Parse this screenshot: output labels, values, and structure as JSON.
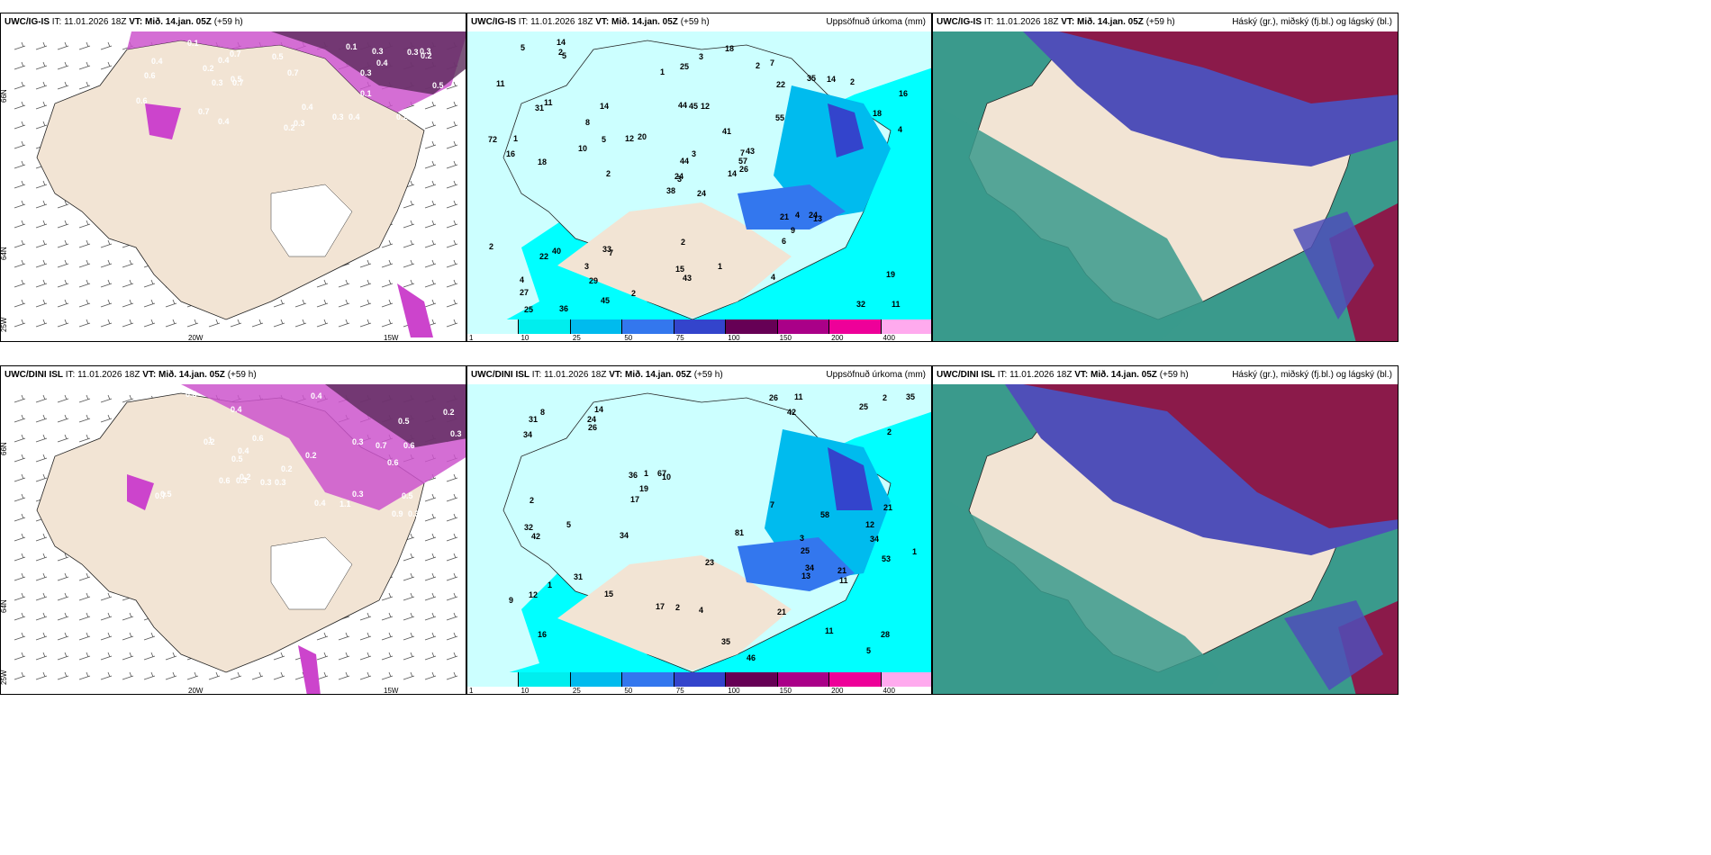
{
  "panels": {
    "p1": {
      "model": "UWC/IG-IS",
      "it": "IT: 11.01.2026 18Z",
      "vt": "VT: Mið. 14.jan. 05Z",
      "lead": "(+59 h)",
      "right_title": ""
    },
    "p2": {
      "model": "UWC/IG-IS",
      "it": "IT: 11.01.2026 18Z",
      "vt": "VT: Mið. 14.jan. 05Z",
      "lead": "(+59 h)",
      "right_title": "Uppsöfnuð úrkoma (mm)"
    },
    "p3": {
      "model": "UWC/IG-IS",
      "it": "IT: 11.01.2026 18Z",
      "vt": "VT: Mið. 14.jan. 05Z",
      "lead": "(+59 h)",
      "right_title": "Háský (gr.), miðský (fj.bl.) og lágský (bl.)"
    },
    "p4": {
      "model": "UWC/DINI ISL",
      "it": "IT: 11.01.2026 18Z",
      "vt": "VT: Mið. 14.jan. 05Z",
      "lead": "(+59 h)",
      "right_title": ""
    },
    "p5": {
      "model": "UWC/DINI ISL",
      "it": "IT: 11.01.2026 18Z",
      "vt": "VT: Mið. 14.jan. 05Z",
      "lead": "(+59 h)",
      "right_title": "Uppsöfnuð úrkoma (mm)"
    },
    "p6": {
      "model": "UWC/DINI ISL",
      "it": "IT: 11.01.2026 18Z",
      "vt": "VT: Mið. 14.jan. 05Z",
      "lead": "(+59 h)",
      "right_title": "Háský (gr.), miðský (fj.bl.) og lágský (bl.)"
    }
  },
  "axis_labels": {
    "lat66": "66N",
    "lat64": "64N",
    "lon25": "25W",
    "lon20": "20W",
    "lon15": "15W"
  },
  "colorbar": {
    "ticks": [
      "1",
      "10",
      "25",
      "50",
      "75",
      "100",
      "150",
      "200",
      "400"
    ],
    "colors": [
      "#ccffff",
      "#00eeee",
      "#00bbee",
      "#3377ee",
      "#3344cc",
      "#660055",
      "#aa0088",
      "#ee0099",
      "#ffaaee"
    ]
  },
  "precip_labels_top": [
    "24",
    "31",
    "3",
    "4",
    "7",
    "7",
    "7",
    "12",
    "22",
    "14",
    "5",
    "11",
    "18",
    "16",
    "38",
    "55",
    "36",
    "44",
    "41",
    "40",
    "20",
    "27",
    "29",
    "45",
    "43",
    "13",
    "11",
    "25",
    "16",
    "21",
    "4",
    "24",
    "15",
    "44",
    "14",
    "35",
    "33",
    "32",
    "19",
    "24",
    "18",
    "12",
    "10",
    "6",
    "45",
    "72",
    "57",
    "25",
    "43",
    "26",
    "22",
    "18",
    "11",
    "9",
    "4",
    "3",
    "2",
    "5",
    "1",
    "2",
    "3",
    "2",
    "1",
    "8",
    "14",
    "14",
    "2",
    "1",
    "3",
    "2",
    "2",
    "2",
    "4",
    "5"
  ],
  "precip_labels_bottom": [
    "25",
    "34",
    "16",
    "14",
    "10",
    "11",
    "12",
    "42",
    "36",
    "46",
    "34",
    "32",
    "31",
    "28",
    "17",
    "21",
    "23",
    "81",
    "67",
    "31",
    "35",
    "25",
    "17",
    "53",
    "26",
    "24",
    "34",
    "42",
    "26",
    "58",
    "35",
    "21",
    "19",
    "34",
    "12",
    "11",
    "13",
    "5",
    "4",
    "1",
    "2",
    "11",
    "5",
    "2",
    "21",
    "15",
    "9",
    "8",
    "7",
    "2",
    "1",
    "1",
    "2",
    "3"
  ],
  "vert_labels_top": [
    "0.4",
    "0.4",
    "0.3",
    "0.3",
    "0.3",
    "0.2",
    "0.1",
    "0.7",
    "0.3",
    "0.4",
    "0.6",
    "0.7",
    "0.4",
    "0.7",
    "0.6",
    "0.4",
    "0.5",
    "0.5",
    "0.5",
    "0.3",
    "0.2",
    "0.5",
    "0.7",
    "0.4",
    "0.3",
    "0.2",
    "0.2",
    "0.1",
    "0.1",
    "0.3",
    "0.6",
    "0.4"
  ],
  "vert_labels_bottom": [
    "0.2",
    "0.2",
    "0.3",
    "0.6",
    "0.6",
    "0.4",
    "0.3",
    "0.5",
    "0.3",
    "0.7",
    "0.6",
    "0.4",
    "0.5",
    "0.9",
    "0.4",
    "0.3",
    "0.2",
    "0.3",
    "0.2",
    "0.6",
    "0.3",
    "1",
    "1.1",
    "0.6",
    "0.5",
    "0.3",
    "0.4",
    "0.5",
    "0.5",
    "0.7",
    "0.2",
    "0.3"
  ],
  "colors": {
    "land": "#f2e4d4",
    "sea_precip": "#00ffff",
    "cloud_high": "#8b1a4a",
    "cloud_mid": "#4f4fb8",
    "cloud_low": "#3a9a8c"
  }
}
